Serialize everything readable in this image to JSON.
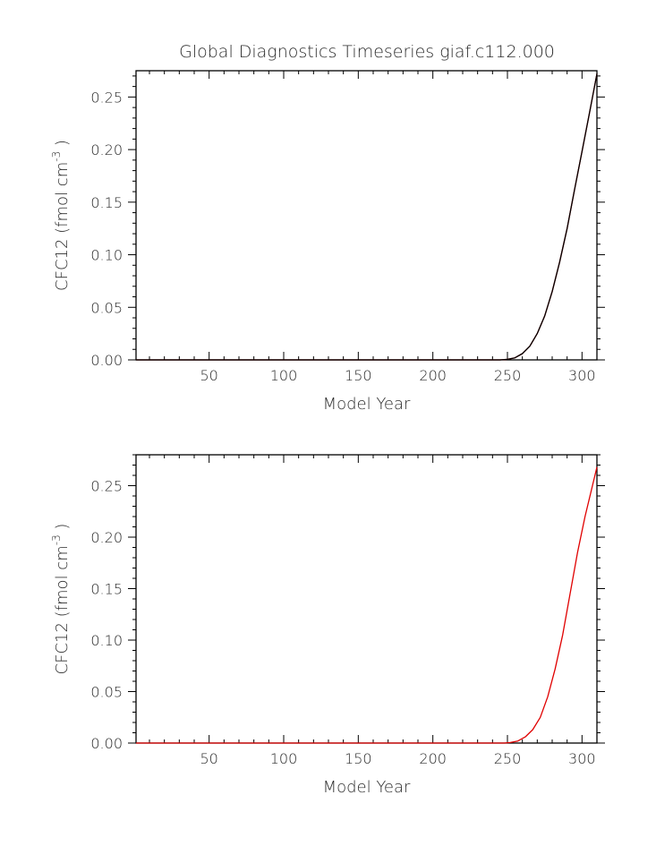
{
  "figure_title": "Global Diagnostics Timeseries giaf.c112.000",
  "chart_data": [
    {
      "type": "line",
      "title": "Global Diagnostics Timeseries giaf.c112.000",
      "xlabel": "Model Year",
      "ylabel_main": "CFC12 (fmol cm",
      "ylabel_sup": "-3",
      "ylabel_close": ")",
      "xlim": [
        1,
        310
      ],
      "ylim": [
        0,
        0.275
      ],
      "xticks": [
        50,
        100,
        150,
        200,
        250,
        300
      ],
      "yticks": [
        0.0,
        0.05,
        0.1,
        0.15,
        0.2,
        0.25
      ],
      "grid": false,
      "series": [
        {
          "color": "#cc0000",
          "x": [
            1,
            245,
            250,
            255,
            260,
            265,
            270,
            275,
            280,
            285,
            290,
            295,
            300,
            305,
            310
          ],
          "y": [
            0,
            0,
            0.0005,
            0.002,
            0.006,
            0.013,
            0.025,
            0.042,
            0.065,
            0.093,
            0.125,
            0.162,
            0.198,
            0.235,
            0.272
          ]
        },
        {
          "color": "#000000",
          "x": [
            1,
            245,
            250,
            255,
            260,
            265,
            270,
            275,
            280,
            285,
            290,
            295,
            300,
            305,
            310
          ],
          "y": [
            0,
            0,
            0.0005,
            0.002,
            0.006,
            0.013,
            0.025,
            0.042,
            0.065,
            0.093,
            0.125,
            0.162,
            0.198,
            0.235,
            0.272
          ]
        }
      ]
    },
    {
      "type": "line",
      "title": "",
      "xlabel": "Model Year",
      "ylabel_main": "CFC12 (fmol cm",
      "ylabel_sup": "-3",
      "ylabel_close": ")",
      "xlim": [
        1,
        310
      ],
      "ylim": [
        0,
        0.28
      ],
      "xticks": [
        50,
        100,
        150,
        200,
        250,
        300
      ],
      "yticks": [
        0.0,
        0.05,
        0.1,
        0.15,
        0.2,
        0.25
      ],
      "grid": false,
      "series": [
        {
          "color": "#e00000",
          "x": [
            1,
            248,
            252,
            257,
            262,
            267,
            272,
            277,
            282,
            287,
            292,
            297,
            302,
            307,
            310
          ],
          "y": [
            0,
            0,
            0.0005,
            0.002,
            0.006,
            0.013,
            0.025,
            0.045,
            0.072,
            0.105,
            0.145,
            0.185,
            0.22,
            0.25,
            0.268
          ]
        }
      ]
    }
  ]
}
